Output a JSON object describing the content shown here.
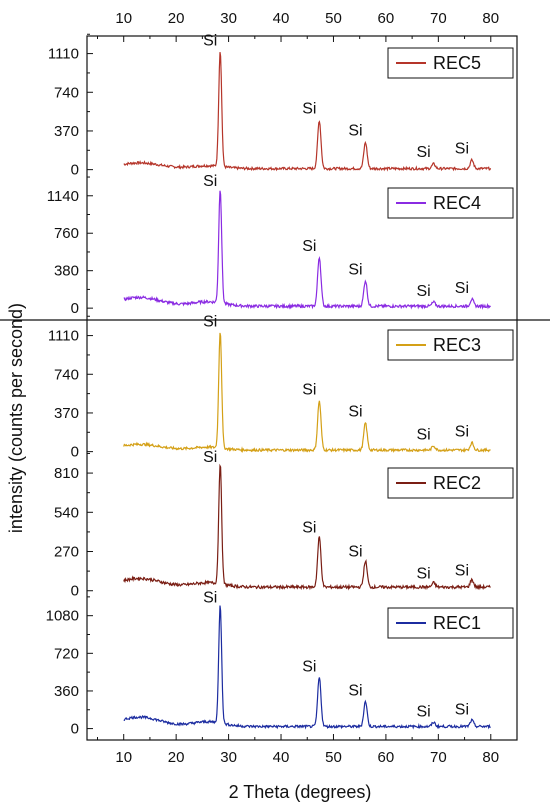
{
  "chart_data": {
    "type": "line",
    "xlabel": "2 Theta (degrees)",
    "ylabel": "intensity (counts per second)",
    "x_ticks": [
      10,
      20,
      30,
      40,
      50,
      60,
      70,
      80
    ],
    "xlim": [
      3,
      85
    ],
    "peak_label": "Si",
    "panels": [
      {
        "series_name": "REC5",
        "color": "#b5352a",
        "y_ticks": [
          0,
          370,
          740,
          1110
        ],
        "ylim": [
          -80,
          1240
        ],
        "baseline": 10,
        "hump": 55,
        "noise": 12,
        "peaks": [
          {
            "x": 28.4,
            "height": 1110,
            "label": "Si"
          },
          {
            "x": 47.3,
            "height": 460,
            "label": "Si"
          },
          {
            "x": 56.1,
            "height": 250,
            "label": "Si"
          },
          {
            "x": 69.1,
            "height": 45,
            "label": "Si"
          },
          {
            "x": 76.4,
            "height": 80,
            "label": "Si"
          }
        ]
      },
      {
        "series_name": "REC4",
        "color": "#8a2be2",
        "y_ticks": [
          0,
          380,
          760,
          1140
        ],
        "ylim": [
          -100,
          1300
        ],
        "baseline": 20,
        "hump": 90,
        "noise": 14,
        "peaks": [
          {
            "x": 28.4,
            "height": 1160,
            "label": "Si"
          },
          {
            "x": 47.3,
            "height": 500,
            "label": "Si"
          },
          {
            "x": 56.1,
            "height": 260,
            "label": "Si"
          },
          {
            "x": 69.1,
            "height": 40,
            "label": "Si"
          },
          {
            "x": 76.4,
            "height": 70,
            "label": "Si"
          }
        ]
      },
      {
        "series_name": "REC3",
        "color": "#d4a017",
        "y_ticks": [
          0,
          370,
          740,
          1110
        ],
        "ylim": [
          -80,
          1240
        ],
        "baseline": 15,
        "hump": 55,
        "noise": 12,
        "peaks": [
          {
            "x": 28.4,
            "height": 1120,
            "label": "Si"
          },
          {
            "x": 47.3,
            "height": 470,
            "label": "Si"
          },
          {
            "x": 56.1,
            "height": 260,
            "label": "Si"
          },
          {
            "x": 69.1,
            "height": 40,
            "label": "Si"
          },
          {
            "x": 76.4,
            "height": 70,
            "label": "Si"
          }
        ]
      },
      {
        "series_name": "REC2",
        "color": "#7a1e14",
        "y_ticks": [
          0,
          270,
          540,
          810
        ],
        "ylim": [
          -50,
          900
        ],
        "baseline": 25,
        "hump": 60,
        "noise": 10,
        "peaks": [
          {
            "x": 28.4,
            "height": 830,
            "label": "Si"
          },
          {
            "x": 47.3,
            "height": 345,
            "label": "Si"
          },
          {
            "x": 56.1,
            "height": 180,
            "label": "Si"
          },
          {
            "x": 69.1,
            "height": 30,
            "label": "Si"
          },
          {
            "x": 76.4,
            "height": 50,
            "label": "Si"
          }
        ]
      },
      {
        "series_name": "REC1",
        "color": "#1c2ca0",
        "y_ticks": [
          0,
          360,
          720,
          1080
        ],
        "ylim": [
          -90,
          1230
        ],
        "baseline": 20,
        "hump": 90,
        "noise": 12,
        "peaks": [
          {
            "x": 28.4,
            "height": 1130,
            "label": "Si"
          },
          {
            "x": 47.3,
            "height": 470,
            "label": "Si"
          },
          {
            "x": 56.1,
            "height": 240,
            "label": "Si"
          },
          {
            "x": 69.1,
            "height": 40,
            "label": "Si"
          },
          {
            "x": 76.4,
            "height": 60,
            "label": "Si"
          }
        ]
      }
    ]
  }
}
